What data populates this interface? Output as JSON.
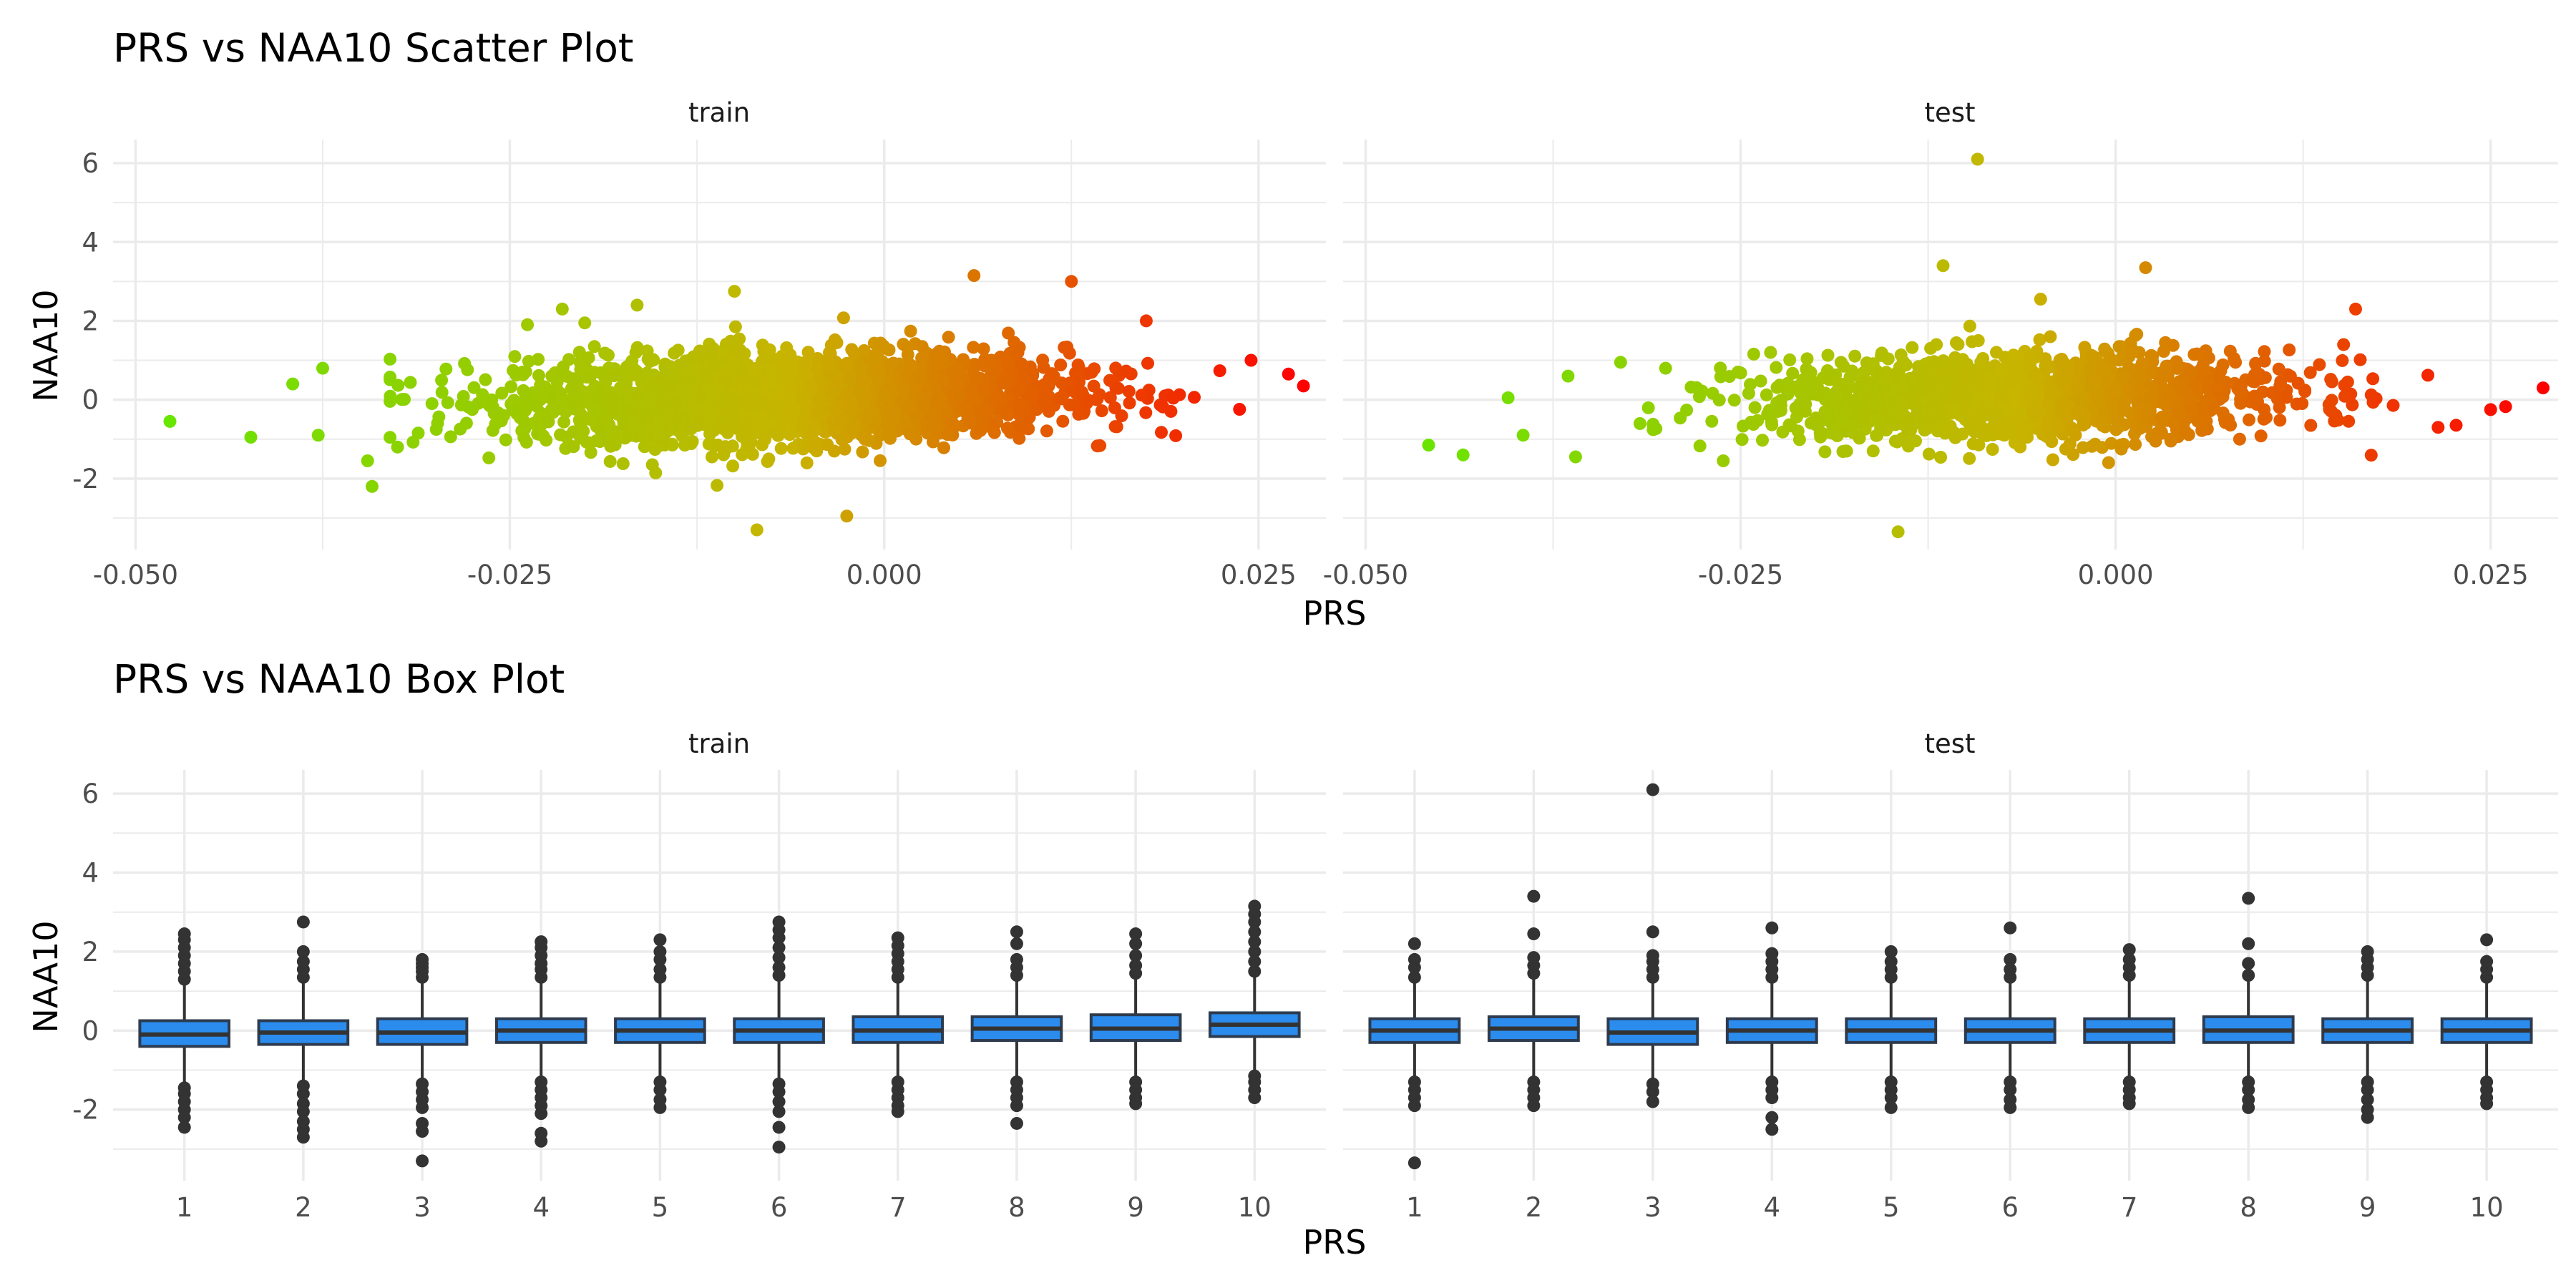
{
  "chart_data": [
    {
      "type": "scatter",
      "title": "PRS vs NAA10 Scatter Plot",
      "xlabel": "PRS",
      "ylabel": "NAA10",
      "facets": [
        "train",
        "test"
      ],
      "xlim": [
        -0.0515,
        0.0295
      ],
      "ylim": [
        -3.8,
        6.6
      ],
      "x_ticks": [
        -0.05,
        -0.025,
        0.0,
        0.025
      ],
      "x_tick_labels": [
        "-0.050",
        "-0.025",
        "0.000",
        "0.025"
      ],
      "y_ticks": [
        -2,
        0,
        2,
        4,
        6
      ],
      "y_tick_labels": [
        "-2",
        "0",
        "2",
        "4",
        "6"
      ],
      "color_scale": {
        "low": "#66e600",
        "mid": "#c8b400",
        "high": "#ff0000",
        "low_value": -0.048,
        "high_value": 0.028
      },
      "grid": true,
      "approximate_distribution": {
        "train": {
          "n": 2600,
          "prs_mean": -0.006,
          "prs_sd": 0.009,
          "naa10_sd": 0.55
        },
        "test": {
          "n": 1400,
          "prs_mean": -0.006,
          "prs_sd": 0.009,
          "naa10_sd": 0.55
        }
      },
      "extreme_points": {
        "train": [
          [
            -0.0477,
            -0.55
          ],
          [
            -0.0423,
            -0.95
          ],
          [
            -0.0395,
            0.4
          ],
          [
            -0.0375,
            0.8
          ],
          [
            -0.0378,
            -0.9
          ],
          [
            -0.0345,
            -1.55
          ],
          [
            -0.0342,
            -2.2
          ],
          [
            -0.0325,
            -1.2
          ],
          [
            -0.0302,
            -0.1
          ],
          [
            -0.0215,
            2.3
          ],
          [
            -0.02,
            1.95
          ],
          [
            -0.0165,
            2.4
          ],
          [
            -0.01,
            2.75
          ],
          [
            -0.0085,
            -3.3
          ],
          [
            -0.0025,
            -2.95
          ],
          [
            0.006,
            3.15
          ],
          [
            0.0125,
            3.0
          ],
          [
            0.0175,
            2.0
          ],
          [
            0.0245,
            1.0
          ],
          [
            0.027,
            0.65
          ],
          [
            0.028,
            0.35
          ]
        ],
        "test": [
          [
            -0.0458,
            -1.15
          ],
          [
            -0.0435,
            -1.4
          ],
          [
            -0.0405,
            0.05
          ],
          [
            -0.0395,
            -0.9
          ],
          [
            -0.0365,
            0.6
          ],
          [
            -0.036,
            -1.45
          ],
          [
            -0.033,
            0.95
          ],
          [
            -0.03,
            0.8
          ],
          [
            -0.023,
            1.2
          ],
          [
            -0.0145,
            -3.35
          ],
          [
            -0.0115,
            3.4
          ],
          [
            -0.0092,
            6.1
          ],
          [
            -0.005,
            2.55
          ],
          [
            0.002,
            3.35
          ],
          [
            0.016,
            2.3
          ],
          [
            0.0215,
            -0.7
          ],
          [
            0.025,
            -0.25
          ],
          [
            0.0285,
            0.3
          ]
        ]
      }
    },
    {
      "type": "box",
      "title": "PRS vs NAA10 Box Plot",
      "xlabel": "PRS",
      "ylabel": "NAA10",
      "facets": [
        "train",
        "test"
      ],
      "categories": [
        "1",
        "2",
        "3",
        "4",
        "5",
        "6",
        "7",
        "8",
        "9",
        "10"
      ],
      "ylim": [
        -3.8,
        6.6
      ],
      "y_ticks": [
        -2,
        0,
        2,
        4,
        6
      ],
      "y_tick_labels": [
        "-2",
        "0",
        "2",
        "4",
        "6"
      ],
      "box_fill": "#2b8cee",
      "grid": true,
      "boxes": {
        "train": [
          {
            "q1": -0.4,
            "median": -0.1,
            "q3": 0.25,
            "whisker_low": -1.35,
            "whisker_high": 1.2,
            "outliers": [
              1.3,
              1.5,
              1.7,
              1.9,
              2.1,
              2.3,
              2.45,
              -1.45,
              -1.6,
              -1.8,
              -2.0,
              -2.2,
              -2.45
            ]
          },
          {
            "q1": -0.35,
            "median": -0.05,
            "q3": 0.25,
            "whisker_low": -1.3,
            "whisker_high": 1.2,
            "outliers": [
              1.35,
              1.55,
              1.75,
              2.0,
              2.75,
              -1.4,
              -1.6,
              -1.85,
              -2.05,
              -2.3,
              -2.5,
              -2.7
            ]
          },
          {
            "q1": -0.35,
            "median": -0.05,
            "q3": 0.3,
            "whisker_low": -1.25,
            "whisker_high": 1.25,
            "outliers": [
              1.35,
              1.5,
              1.6,
              1.7,
              1.8,
              -1.35,
              -1.55,
              -1.75,
              -1.95,
              -2.35,
              -2.55,
              -3.3
            ]
          },
          {
            "q1": -0.3,
            "median": 0.0,
            "q3": 0.3,
            "whisker_low": -1.2,
            "whisker_high": 1.2,
            "outliers": [
              1.35,
              1.55,
              1.7,
              1.9,
              2.1,
              2.25,
              -1.3,
              -1.5,
              -1.7,
              -1.9,
              -2.1,
              -2.6,
              -2.8
            ]
          },
          {
            "q1": -0.3,
            "median": 0.0,
            "q3": 0.3,
            "whisker_low": -1.2,
            "whisker_high": 1.2,
            "outliers": [
              1.35,
              1.55,
              1.8,
              2.0,
              2.3,
              -1.3,
              -1.5,
              -1.75,
              -1.95
            ]
          },
          {
            "q1": -0.3,
            "median": 0.0,
            "q3": 0.3,
            "whisker_low": -1.25,
            "whisker_high": 1.25,
            "outliers": [
              1.4,
              1.6,
              1.85,
              2.1,
              2.35,
              2.55,
              2.75,
              -1.35,
              -1.55,
              -1.8,
              -2.05,
              -2.45,
              -2.95
            ]
          },
          {
            "q1": -0.3,
            "median": 0.0,
            "q3": 0.35,
            "whisker_low": -1.2,
            "whisker_high": 1.25,
            "outliers": [
              1.35,
              1.55,
              1.75,
              1.95,
              2.15,
              2.35,
              -1.3,
              -1.5,
              -1.7,
              -1.9,
              -2.05
            ]
          },
          {
            "q1": -0.25,
            "median": 0.05,
            "q3": 0.35,
            "whisker_low": -1.2,
            "whisker_high": 1.3,
            "outliers": [
              1.4,
              1.6,
              1.8,
              2.2,
              2.5,
              -1.3,
              -1.5,
              -1.7,
              -1.9,
              -2.35
            ]
          },
          {
            "q1": -0.25,
            "median": 0.05,
            "q3": 0.4,
            "whisker_low": -1.2,
            "whisker_high": 1.3,
            "outliers": [
              1.45,
              1.65,
              1.9,
              2.2,
              2.45,
              -1.3,
              -1.5,
              -1.7,
              -1.85
            ]
          },
          {
            "q1": -0.15,
            "median": 0.15,
            "q3": 0.45,
            "whisker_low": -1.05,
            "whisker_high": 1.35,
            "outliers": [
              1.5,
              1.75,
              2.0,
              2.25,
              2.5,
              2.75,
              2.95,
              3.15,
              -1.15,
              -1.3,
              -1.5,
              -1.7
            ]
          }
        ],
        "test": [
          {
            "q1": -0.3,
            "median": 0.0,
            "q3": 0.3,
            "whisker_low": -1.2,
            "whisker_high": 1.2,
            "outliers": [
              1.35,
              1.6,
              1.8,
              2.2,
              -1.3,
              -1.5,
              -1.7,
              -1.9,
              -3.35
            ]
          },
          {
            "q1": -0.25,
            "median": 0.05,
            "q3": 0.35,
            "whisker_low": -1.2,
            "whisker_high": 1.3,
            "outliers": [
              1.45,
              1.65,
              1.85,
              2.45,
              3.4,
              -1.3,
              -1.5,
              -1.7,
              -1.9
            ]
          },
          {
            "q1": -0.35,
            "median": -0.05,
            "q3": 0.3,
            "whisker_low": -1.2,
            "whisker_high": 1.2,
            "outliers": [
              1.35,
              1.55,
              1.75,
              1.9,
              2.5,
              6.1,
              -1.35,
              -1.55,
              -1.8
            ]
          },
          {
            "q1": -0.3,
            "median": 0.0,
            "q3": 0.3,
            "whisker_low": -1.2,
            "whisker_high": 1.2,
            "outliers": [
              1.35,
              1.55,
              1.75,
              1.95,
              2.6,
              -1.3,
              -1.5,
              -1.7,
              -2.2,
              -2.5
            ]
          },
          {
            "q1": -0.3,
            "median": 0.0,
            "q3": 0.3,
            "whisker_low": -1.2,
            "whisker_high": 1.2,
            "outliers": [
              1.35,
              1.55,
              1.75,
              2.0,
              -1.3,
              -1.5,
              -1.7,
              -1.95
            ]
          },
          {
            "q1": -0.3,
            "median": 0.0,
            "q3": 0.3,
            "whisker_low": -1.2,
            "whisker_high": 1.2,
            "outliers": [
              1.35,
              1.55,
              1.8,
              2.6,
              -1.3,
              -1.5,
              -1.75,
              -1.95
            ]
          },
          {
            "q1": -0.3,
            "median": 0.0,
            "q3": 0.3,
            "whisker_low": -1.2,
            "whisker_high": 1.25,
            "outliers": [
              1.4,
              1.6,
              1.8,
              2.05,
              -1.3,
              -1.5,
              -1.7,
              -1.85
            ]
          },
          {
            "q1": -0.3,
            "median": 0.0,
            "q3": 0.35,
            "whisker_low": -1.2,
            "whisker_high": 1.25,
            "outliers": [
              1.4,
              1.7,
              2.2,
              3.35,
              -1.3,
              -1.5,
              -1.75,
              -1.95
            ]
          },
          {
            "q1": -0.3,
            "median": 0.0,
            "q3": 0.3,
            "whisker_low": -1.2,
            "whisker_high": 1.25,
            "outliers": [
              1.4,
              1.6,
              1.8,
              2.0,
              -1.3,
              -1.5,
              -1.75,
              -2.0,
              -2.2
            ]
          },
          {
            "q1": -0.3,
            "median": 0.0,
            "q3": 0.3,
            "whisker_low": -1.2,
            "whisker_high": 1.2,
            "outliers": [
              1.35,
              1.55,
              1.75,
              2.3,
              -1.3,
              -1.5,
              -1.7,
              -1.85
            ]
          }
        ]
      }
    }
  ]
}
